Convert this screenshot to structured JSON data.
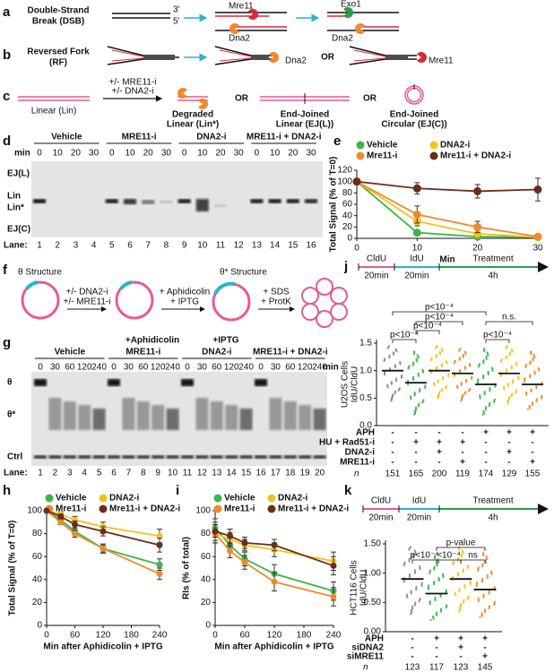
{
  "panel_labels": [
    "a",
    "b",
    "c",
    "d",
    "e",
    "f",
    "g",
    "h",
    "i",
    "j",
    "k"
  ],
  "a": {
    "title": [
      "Double-Strand",
      "Break (DSB)"
    ],
    "ends": [
      "3'",
      "5'"
    ],
    "proteins": [
      "Mre11",
      "Dna2",
      "Exo1",
      "Dna2"
    ]
  },
  "b": {
    "title": [
      "Reversed Fork",
      "(RF)"
    ],
    "proteins": [
      "Dna2",
      "Mre11"
    ],
    "or": "OR"
  },
  "c": {
    "start": "Linear (Lin)",
    "treatment": [
      "+/- MRE11-i",
      "+/- DNA2-i"
    ],
    "outcomes": [
      [
        "Degraded",
        "Linear (Lin*)"
      ],
      [
        "End-Joined",
        "Linear (EJ(L))"
      ],
      [
        "End-Joined",
        "Circular (EJ(C))"
      ]
    ],
    "or": "OR"
  },
  "d": {
    "groups": [
      "Vehicle",
      "MRE11-i",
      "DNA2-i",
      "MRE11-i + DNA2-i"
    ],
    "min_label": "min",
    "times": [
      "0",
      "10",
      "20",
      "30"
    ],
    "bands": [
      "EJ(L)",
      "Lin",
      "Lin*",
      "EJ(C)"
    ],
    "lane_label": "Lane:",
    "lanes": [
      1,
      2,
      3,
      4,
      5,
      6,
      7,
      8,
      9,
      10,
      11,
      12,
      13,
      14,
      15,
      16
    ]
  },
  "f": {
    "start": "θ Structure",
    "treatment": [
      "+/- DNA2-i",
      "+/- MRE11-i"
    ],
    "arrest": [
      "+ Aphidicolin",
      "+ IPTG"
    ],
    "arrested": "θ* Structure",
    "extraction": [
      "+ SDS",
      "+ ProtK"
    ]
  },
  "g": {
    "treatment": [
      "+Aphidicolin",
      "+IPTG"
    ],
    "groups": [
      "Vehicle",
      "MRE11-i",
      "DNA2-i",
      "MRE11-i + DNA2-i"
    ],
    "times": [
      "0",
      "30",
      "60",
      "120",
      "240"
    ],
    "min_label": "min",
    "bands": [
      "θ",
      "θ*",
      "Ctrl"
    ],
    "lane_label": "Lane:",
    "lanes": [
      1,
      2,
      3,
      4,
      5,
      6,
      7,
      8,
      9,
      10,
      11,
      12,
      13,
      14,
      15,
      16,
      17,
      18,
      19,
      20
    ]
  },
  "chart_data": [
    {
      "type": "line",
      "x": [
        0,
        10,
        20,
        30
      ],
      "xlim": [
        0,
        30
      ],
      "xticks": [
        0,
        10,
        20,
        30
      ],
      "ylim": [
        0,
        120
      ],
      "yticks": [
        0,
        20,
        40,
        60,
        80,
        100,
        120
      ],
      "xlabel": "Min",
      "ylabel": "Total Signal (% of T=0)",
      "series": [
        {
          "name": "Vehicle",
          "color": "#3cb54a",
          "values": [
            100,
            10,
            3,
            2
          ],
          "errors": [
            0,
            2,
            1,
            1
          ]
        },
        {
          "name": "DNA2-i",
          "color": "#f5c21b",
          "values": [
            100,
            30,
            8,
            2
          ],
          "errors": [
            0,
            8,
            3,
            1
          ]
        },
        {
          "name": "Mre11-i",
          "color": "#ee8a2e",
          "values": [
            100,
            42,
            20,
            3
          ],
          "errors": [
            0,
            15,
            10,
            1
          ]
        },
        {
          "name": "Mre11-i + DNA2-i",
          "color": "#6b2e1c",
          "values": [
            100,
            88,
            83,
            86
          ],
          "errors": [
            0,
            10,
            12,
            20
          ]
        }
      ]
    },
    {
      "type": "line",
      "x": [
        0,
        30,
        60,
        120,
        240
      ],
      "xlim": [
        0,
        240
      ],
      "xticks": [
        0,
        60,
        120,
        180,
        240
      ],
      "ylim": [
        0,
        100
      ],
      "yticks": [
        0,
        20,
        40,
        60,
        80,
        100
      ],
      "xlabel": "Min after Aphidicolin + IPTG",
      "ylabel": "Total Signal (% of T=0)",
      "series": [
        {
          "name": "Vehicle",
          "color": "#3cb54a",
          "values": [
            100,
            92,
            82,
            67,
            53
          ],
          "errors": [
            0,
            2,
            3,
            3,
            5
          ]
        },
        {
          "name": "DNA2-i",
          "color": "#f5c21b",
          "values": [
            100,
            97,
            92,
            86,
            78
          ],
          "errors": [
            0,
            2,
            3,
            4,
            6
          ]
        },
        {
          "name": "Mre11-i",
          "color": "#ee8a2e",
          "values": [
            100,
            90,
            80,
            67,
            45
          ],
          "errors": [
            0,
            2,
            3,
            4,
            5
          ]
        },
        {
          "name": "Mre11-i + DNA2-i",
          "color": "#6b2e1c",
          "values": [
            100,
            95,
            88,
            82,
            70
          ],
          "errors": [
            0,
            2,
            3,
            4,
            6
          ]
        }
      ]
    },
    {
      "type": "line",
      "x": [
        0,
        30,
        60,
        120,
        240
      ],
      "xlim": [
        0,
        240
      ],
      "xticks": [
        0,
        60,
        120,
        180,
        240
      ],
      "ylim": [
        0,
        100
      ],
      "yticks": [
        0,
        20,
        40,
        60,
        80,
        100
      ],
      "xlabel": "Min after Aphidicolin + IPTG",
      "ylabel": "RIs (% of total)",
      "series": [
        {
          "name": "Vehicle",
          "color": "#3cb54a",
          "values": [
            85,
            70,
            58,
            45,
            30
          ],
          "errors": [
            8,
            6,
            6,
            8,
            8
          ]
        },
        {
          "name": "DNA2-i",
          "color": "#f5c21b",
          "values": [
            80,
            75,
            70,
            66,
            56
          ],
          "errors": [
            8,
            6,
            5,
            6,
            8
          ]
        },
        {
          "name": "Mre11-i",
          "color": "#ee8a2e",
          "values": [
            80,
            65,
            55,
            38,
            25
          ],
          "errors": [
            8,
            6,
            6,
            8,
            8
          ]
        },
        {
          "name": "Mre11-i + DNA2-i",
          "color": "#6b2e1c",
          "values": [
            82,
            78,
            72,
            70,
            52
          ],
          "errors": [
            8,
            6,
            5,
            5,
            8
          ]
        }
      ]
    },
    {
      "type": "dot",
      "title": "U2OS Cells",
      "ylabel": "IdU/CldU",
      "ylim": [
        0,
        1.5
      ],
      "yticks": [
        {
          "value": 0,
          "label": "0.0"
        },
        {
          "value": 0.5,
          "label": "0.5"
        },
        {
          "value": 1,
          "label": "1.0"
        },
        1.5
      ],
      "values": [
        1.0,
        0.78,
        1.0,
        0.95,
        0.75,
        0.95,
        0.75
      ],
      "ranges": [
        [
          0.45,
          1.45
        ],
        [
          0.2,
          1.35
        ],
        [
          0.5,
          1.45
        ],
        [
          0.45,
          1.4
        ],
        [
          0.2,
          1.4
        ],
        [
          0.4,
          1.45
        ],
        [
          0.3,
          1.35
        ]
      ],
      "colors": [
        "#8c8c8c",
        "#3cb54a",
        "#f5c21b",
        "#ee8a2e",
        "#3cb54a",
        "#f5c21b",
        "#ee8a2e"
      ],
      "annotations": [
        "p<10⁻⁴",
        "p<10⁻⁴",
        "n.s.",
        "p<10⁻⁴",
        "p<10⁻⁴",
        "p<10⁻⁴"
      ],
      "timeline": {
        "steps": [
          "CldU",
          "IdU",
          "Treatment"
        ],
        "durations": [
          "20min",
          "20min",
          "4h"
        ]
      },
      "conditions": [
        {
          "label": "APH",
          "values": [
            "-",
            "-",
            "-",
            "-",
            "+",
            "+",
            "+"
          ]
        },
        {
          "label": "HU + Rad51-i",
          "values": [
            "-",
            "+",
            "+",
            "+",
            "-",
            "-",
            "-"
          ]
        },
        {
          "label": "DNA2-i",
          "values": [
            "-",
            "-",
            "+",
            "-",
            "-",
            "+",
            "-"
          ]
        },
        {
          "label": "MRE11-i",
          "values": [
            "-",
            "-",
            "-",
            "+",
            "-",
            "-",
            "+"
          ]
        }
      ],
      "n": {
        "label": "n",
        "values": [
          151,
          165,
          200,
          119,
          174,
          129,
          155
        ]
      }
    },
    {
      "type": "dot",
      "title": "HCT116 Cells",
      "ylabel": "IdU/CldU",
      "ylim": [
        0,
        1.5
      ],
      "yticks": [
        {
          "value": 0,
          "label": "0.00"
        },
        {
          "value": 0.5,
          "label": "0.50"
        },
        {
          "value": 1,
          "label": "1.00"
        },
        {
          "value": 1.5,
          "label": "1.50"
        }
      ],
      "values": [
        0.9,
        0.65,
        0.9,
        0.72
      ],
      "ranges": [
        [
          0.3,
          1.45
        ],
        [
          0.2,
          1.3
        ],
        [
          0.35,
          1.45
        ],
        [
          0.25,
          1.35
        ]
      ],
      "colors": [
        "#8c8c8c",
        "#3cb54a",
        "#f5c21b",
        "#ee8a2e"
      ],
      "annotations": [
        "p-value",
        "p<10⁻⁴",
        "<10⁻⁴",
        "ns"
      ],
      "timeline": {
        "steps": [
          "CldU",
          "IdU",
          "Treatment"
        ],
        "durations": [
          "20min",
          "20min",
          "4h"
        ]
      },
      "conditions": [
        {
          "label": "APH",
          "values": [
            "-",
            "+",
            "+",
            "+"
          ]
        },
        {
          "label": "siDNA2",
          "values": [
            "-",
            "-",
            "+",
            "-"
          ]
        },
        {
          "label": "siMRE11",
          "values": [
            "-",
            "-",
            "-",
            "+"
          ]
        }
      ],
      "n": {
        "label": "n",
        "values": [
          123,
          117,
          123,
          145
        ]
      }
    }
  ]
}
